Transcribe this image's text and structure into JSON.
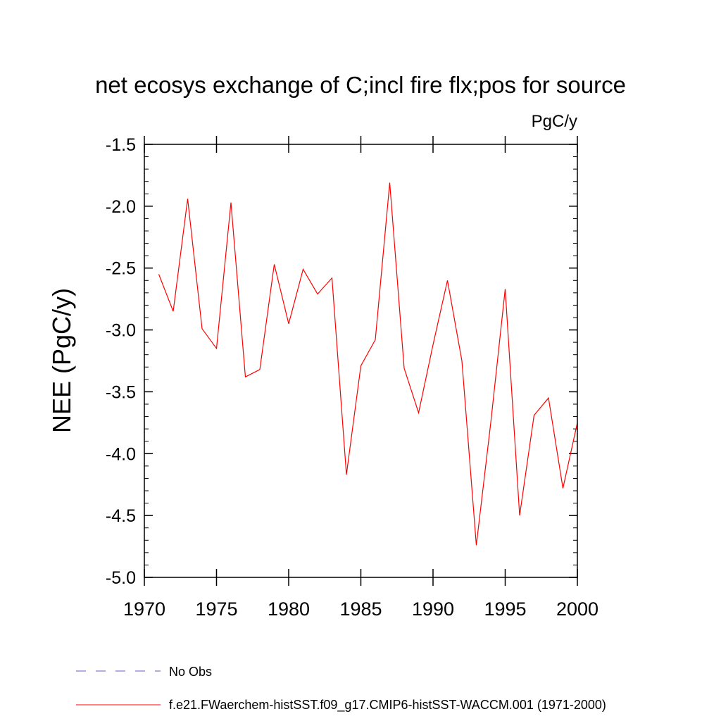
{
  "chart_data": {
    "type": "line",
    "title": "net ecosys exchange of C;incl fire flx;pos for source",
    "units": "PgC/y",
    "xlabel": "",
    "ylabel": "NEE  (PgC/y)",
    "xlim": [
      1970,
      2000
    ],
    "ylim": [
      -5.0,
      -1.5
    ],
    "xticks": [
      "1970",
      "1975",
      "1980",
      "1985",
      "1990",
      "1995",
      "2000"
    ],
    "yticks": [
      "-1.5",
      "-2.0",
      "-2.5",
      "-3.0",
      "-3.5",
      "-4.0",
      "-4.5",
      "-5.0"
    ],
    "grid": false,
    "legend_position": "bottom",
    "colors": {
      "model": "#ff0000",
      "obs": "#6a5acd"
    },
    "series": [
      {
        "name": "f.e21.FWaerchem-histSST.f09_g17.CMIP6-histSST-WACCM.001 (1971-2000)",
        "style": "solid",
        "color": "#ff0000",
        "x": [
          1971,
          1972,
          1973,
          1974,
          1975,
          1976,
          1977,
          1978,
          1979,
          1980,
          1981,
          1982,
          1983,
          1984,
          1985,
          1986,
          1987,
          1988,
          1989,
          1990,
          1991,
          1992,
          1993,
          1994,
          1995,
          1996,
          1997,
          1998,
          1999,
          2000
        ],
        "y": [
          -2.55,
          -2.85,
          -1.94,
          -2.99,
          -3.15,
          -1.97,
          -3.38,
          -3.32,
          -2.47,
          -2.95,
          -2.51,
          -2.71,
          -2.58,
          -4.17,
          -3.29,
          -3.08,
          -1.81,
          -3.31,
          -3.67,
          -3.12,
          -2.6,
          -3.25,
          -4.74,
          -3.75,
          -2.67,
          -4.5,
          -3.69,
          -3.55,
          -4.28,
          -3.75
        ]
      }
    ],
    "legend": [
      {
        "label": "No Obs",
        "style": "dashed",
        "color": "#6a5acd"
      },
      {
        "label": "f.e21.FWaerchem-histSST.f09_g17.CMIP6-histSST-WACCM.001 (1971-2000)",
        "style": "solid",
        "color": "#ff0000"
      }
    ]
  }
}
